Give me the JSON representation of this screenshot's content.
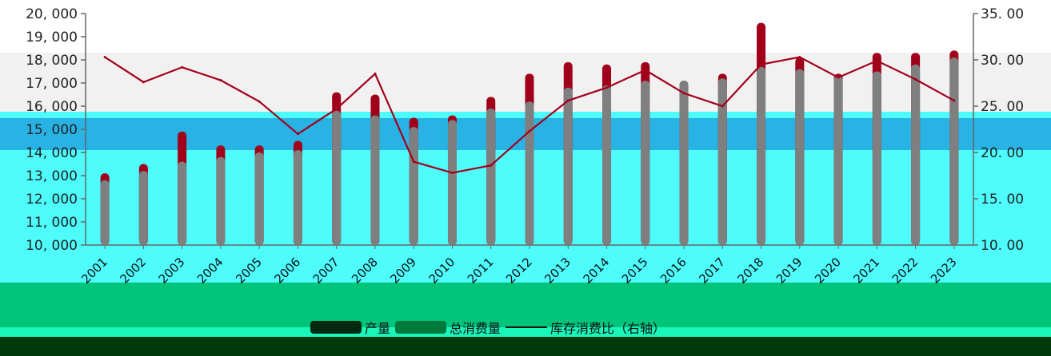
{
  "colors": {
    "production": "#a0001a",
    "consumption": "#7f7f7f",
    "ratio": "#a3001c",
    "legend_production": "#002a10",
    "legend_consumption": "#007a3c",
    "axis": "#666666"
  },
  "legend": {
    "production": "产量",
    "consumption": "总消费量",
    "ratio": "库存消费比（右轴）"
  },
  "chart_data": {
    "type": "bar",
    "categories": [
      "2001",
      "2002",
      "2003",
      "2004",
      "2005",
      "2006",
      "2007",
      "2008",
      "2009",
      "2010",
      "2011",
      "2012",
      "2013",
      "2014",
      "2015",
      "2016",
      "2017",
      "2018",
      "2019",
      "2020",
      "2021",
      "2022",
      "2023"
    ],
    "series": [
      {
        "name": "产量",
        "type": "bar",
        "axis": "left",
        "values": [
          13100,
          13500,
          14900,
          14300,
          14300,
          14500,
          16600,
          16500,
          15500,
          15600,
          16400,
          17400,
          17900,
          17800,
          17900,
          17100,
          17400,
          19600,
          18100,
          17400,
          18300,
          18300,
          18400
        ]
      },
      {
        "name": "总消费量",
        "type": "bar",
        "axis": "left",
        "values": [
          12800,
          13200,
          13600,
          13800,
          14000,
          14100,
          15800,
          15600,
          15100,
          15400,
          15900,
          16200,
          16800,
          16900,
          17100,
          17100,
          17200,
          17700,
          17600,
          17300,
          17500,
          17800,
          18100
        ]
      },
      {
        "name": "库存消费比（右轴）",
        "type": "line",
        "axis": "right",
        "values": [
          30.3,
          27.6,
          29.2,
          27.8,
          25.5,
          22.0,
          24.7,
          28.5,
          19.0,
          17.8,
          18.6,
          22.3,
          25.6,
          27.0,
          28.9,
          26.4,
          25.0,
          29.5,
          30.3,
          28.1,
          29.9,
          27.9,
          25.6
        ]
      }
    ],
    "ylim": [
      10000,
      20000
    ],
    "yticks": [
      "10, 000",
      "11, 000",
      "12, 000",
      "13, 000",
      "14, 000",
      "15, 000",
      "16, 000",
      "17, 000",
      "18, 000",
      "19, 000",
      "20, 000"
    ],
    "y2lim": [
      10,
      35
    ],
    "y2ticks": [
      "10. 00",
      "15. 00",
      "20. 00",
      "25. 00",
      "30. 00",
      "35. 00"
    ],
    "legend_position": "bottom",
    "grid": false
  }
}
